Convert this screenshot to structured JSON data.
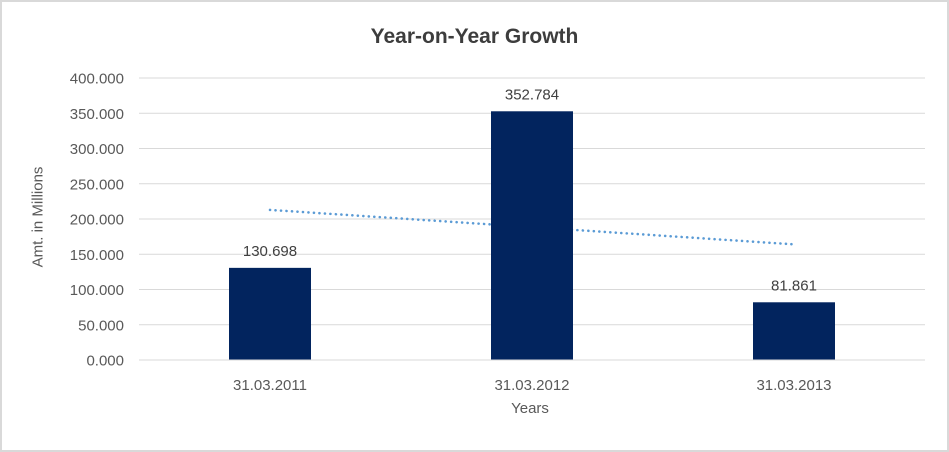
{
  "chart": {
    "title": "Year-on-Year Growth",
    "x_axis_title": "Years",
    "y_axis_title": "Amt. in Millions"
  },
  "chart_data": {
    "type": "bar",
    "title": "Year-on-Year Growth",
    "xlabel": "Years",
    "ylabel": "Amt. in Millions",
    "categories": [
      "31.03.2011",
      "31.03.2012",
      "31.03.2013"
    ],
    "values": [
      130.698,
      352.784,
      81.861
    ],
    "data_labels": [
      "130.698",
      "352.784",
      "81.861"
    ],
    "ylim": [
      0,
      400
    ],
    "ytick_step": 50,
    "ytick_labels": [
      "0.000",
      "50.000",
      "100.000",
      "150.000",
      "200.000",
      "250.000",
      "300.000",
      "350.000",
      "400.000"
    ],
    "legend": "none",
    "grid": "horizontal",
    "colors": {
      "bar": "#02245e",
      "gridline": "#d9d9d9",
      "axis_line": "#d9d9d9",
      "tick_label": "#595959",
      "data_label": "#404040",
      "trendline": "#5b9bd5"
    },
    "trendline": {
      "type": "linear",
      "start_value": 212.9,
      "end_value": 164.0,
      "style": "dotted"
    }
  }
}
